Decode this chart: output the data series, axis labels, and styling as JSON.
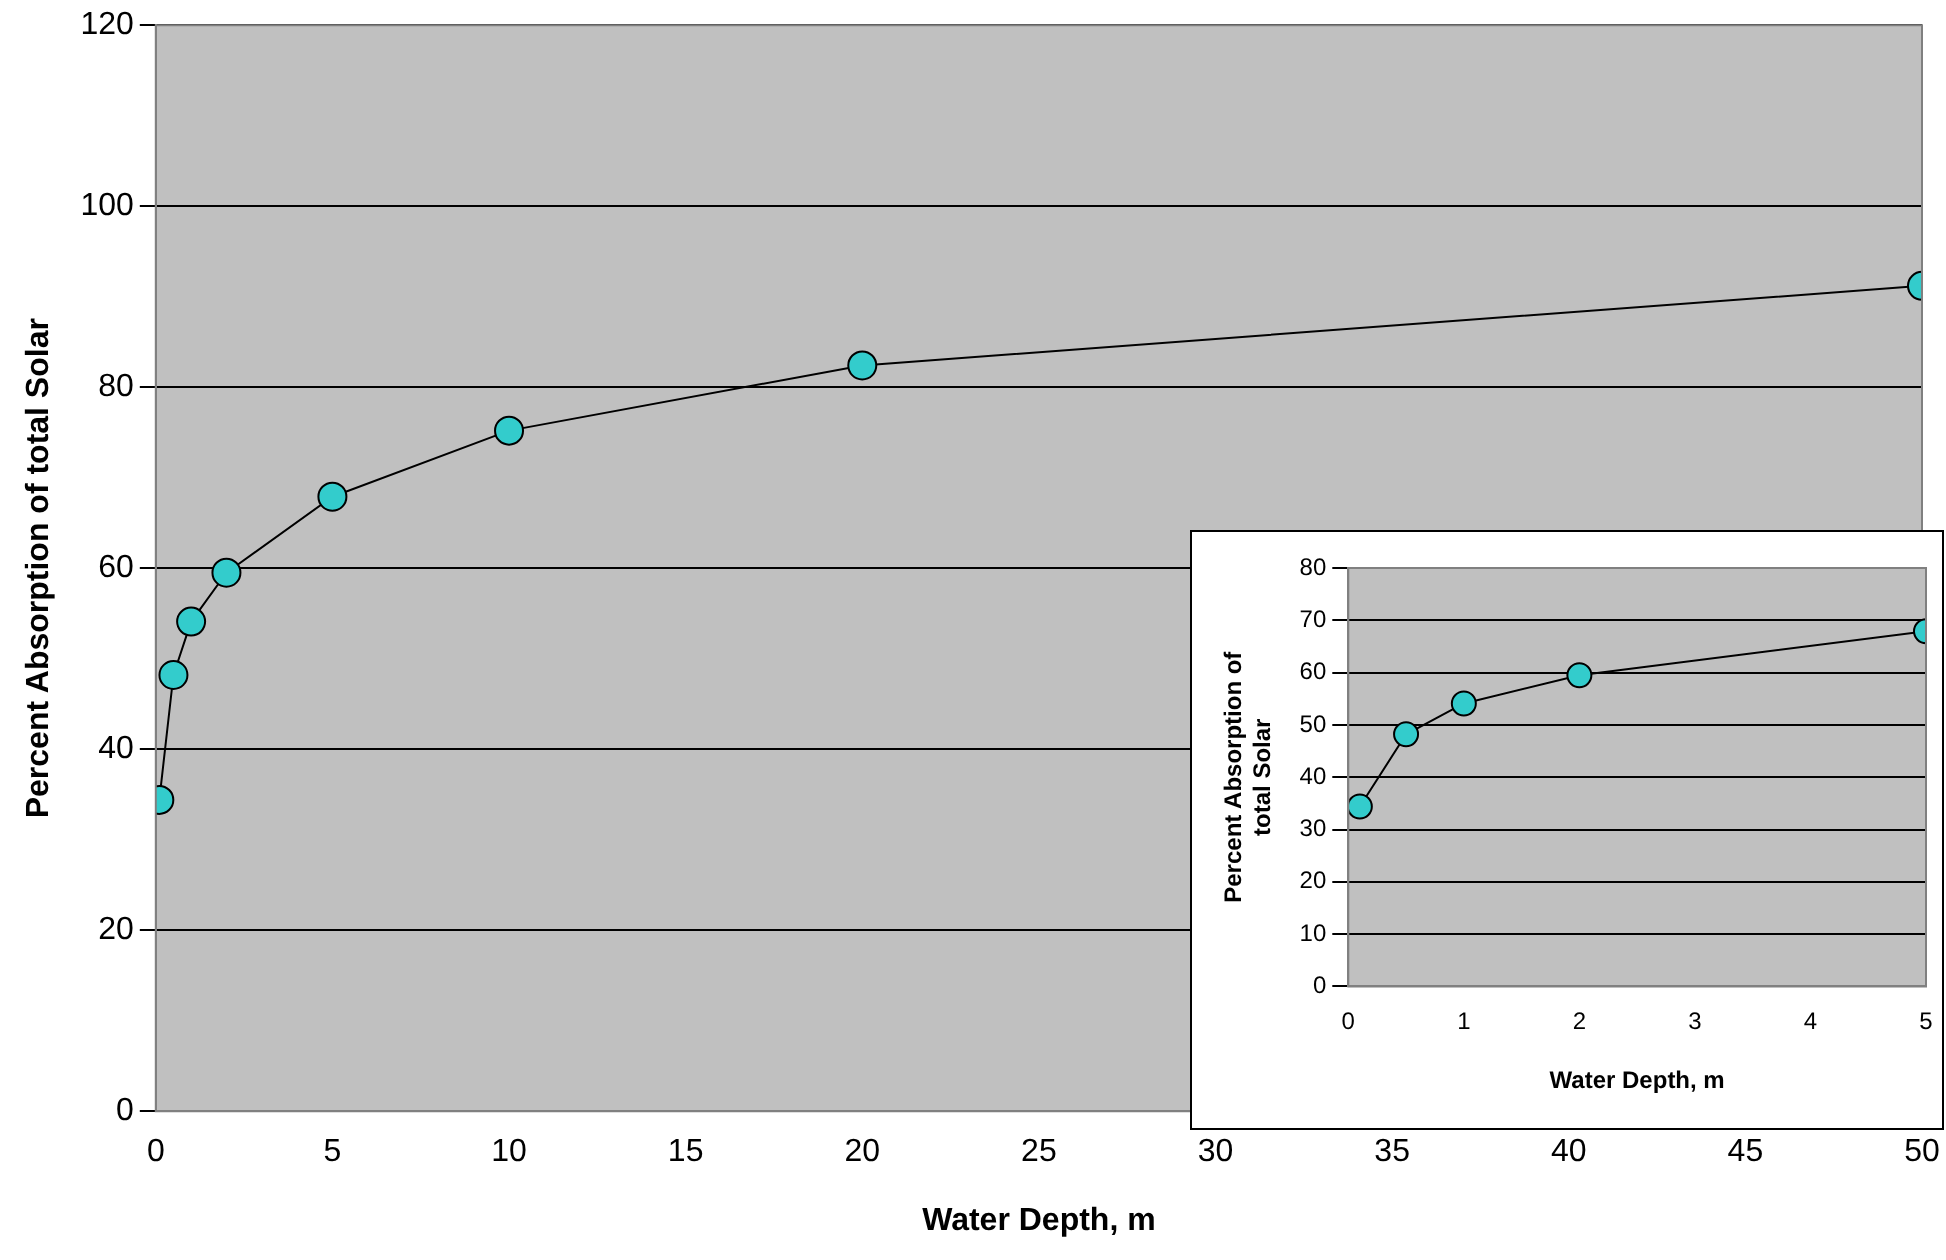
{
  "chart_data": [
    {
      "type": "line",
      "xlabel": "Water Depth, m",
      "ylabel": "Percent Absorption of total Solar",
      "x": [
        0.1,
        0.5,
        1,
        2,
        5,
        10,
        20,
        50
      ],
      "series": [
        {
          "color": "#33cccc",
          "values": [
            34.4,
            48.2,
            54.1,
            59.5,
            67.9,
            75.2,
            82.4,
            91.2
          ]
        }
      ],
      "xlim": [
        0,
        50
      ],
      "xticks": [
        0,
        5,
        10,
        15,
        20,
        25,
        30,
        35,
        40,
        45,
        50
      ],
      "ylim": [
        0,
        120
      ],
      "yticks": [
        0,
        20,
        40,
        60,
        80,
        100,
        120
      ],
      "grid": "y",
      "legend": false,
      "marker": "circle",
      "line_style": "solid"
    },
    {
      "type": "line",
      "xlabel": "Water Depth, m",
      "ylabel": "Percent Absorption of total Solar",
      "x": [
        0.1,
        0.5,
        1,
        2,
        5
      ],
      "series": [
        {
          "color": "#33cccc",
          "values": [
            34.4,
            48.2,
            54.1,
            59.5,
            67.9
          ]
        }
      ],
      "xlim": [
        0,
        5
      ],
      "xticks": [
        0,
        1,
        2,
        3,
        4,
        5
      ],
      "ylim": [
        0,
        80
      ],
      "yticks": [
        0,
        10,
        20,
        30,
        40,
        50,
        60,
        70,
        80
      ],
      "grid": "y",
      "legend": false,
      "marker": "circle",
      "line_style": "solid"
    }
  ]
}
